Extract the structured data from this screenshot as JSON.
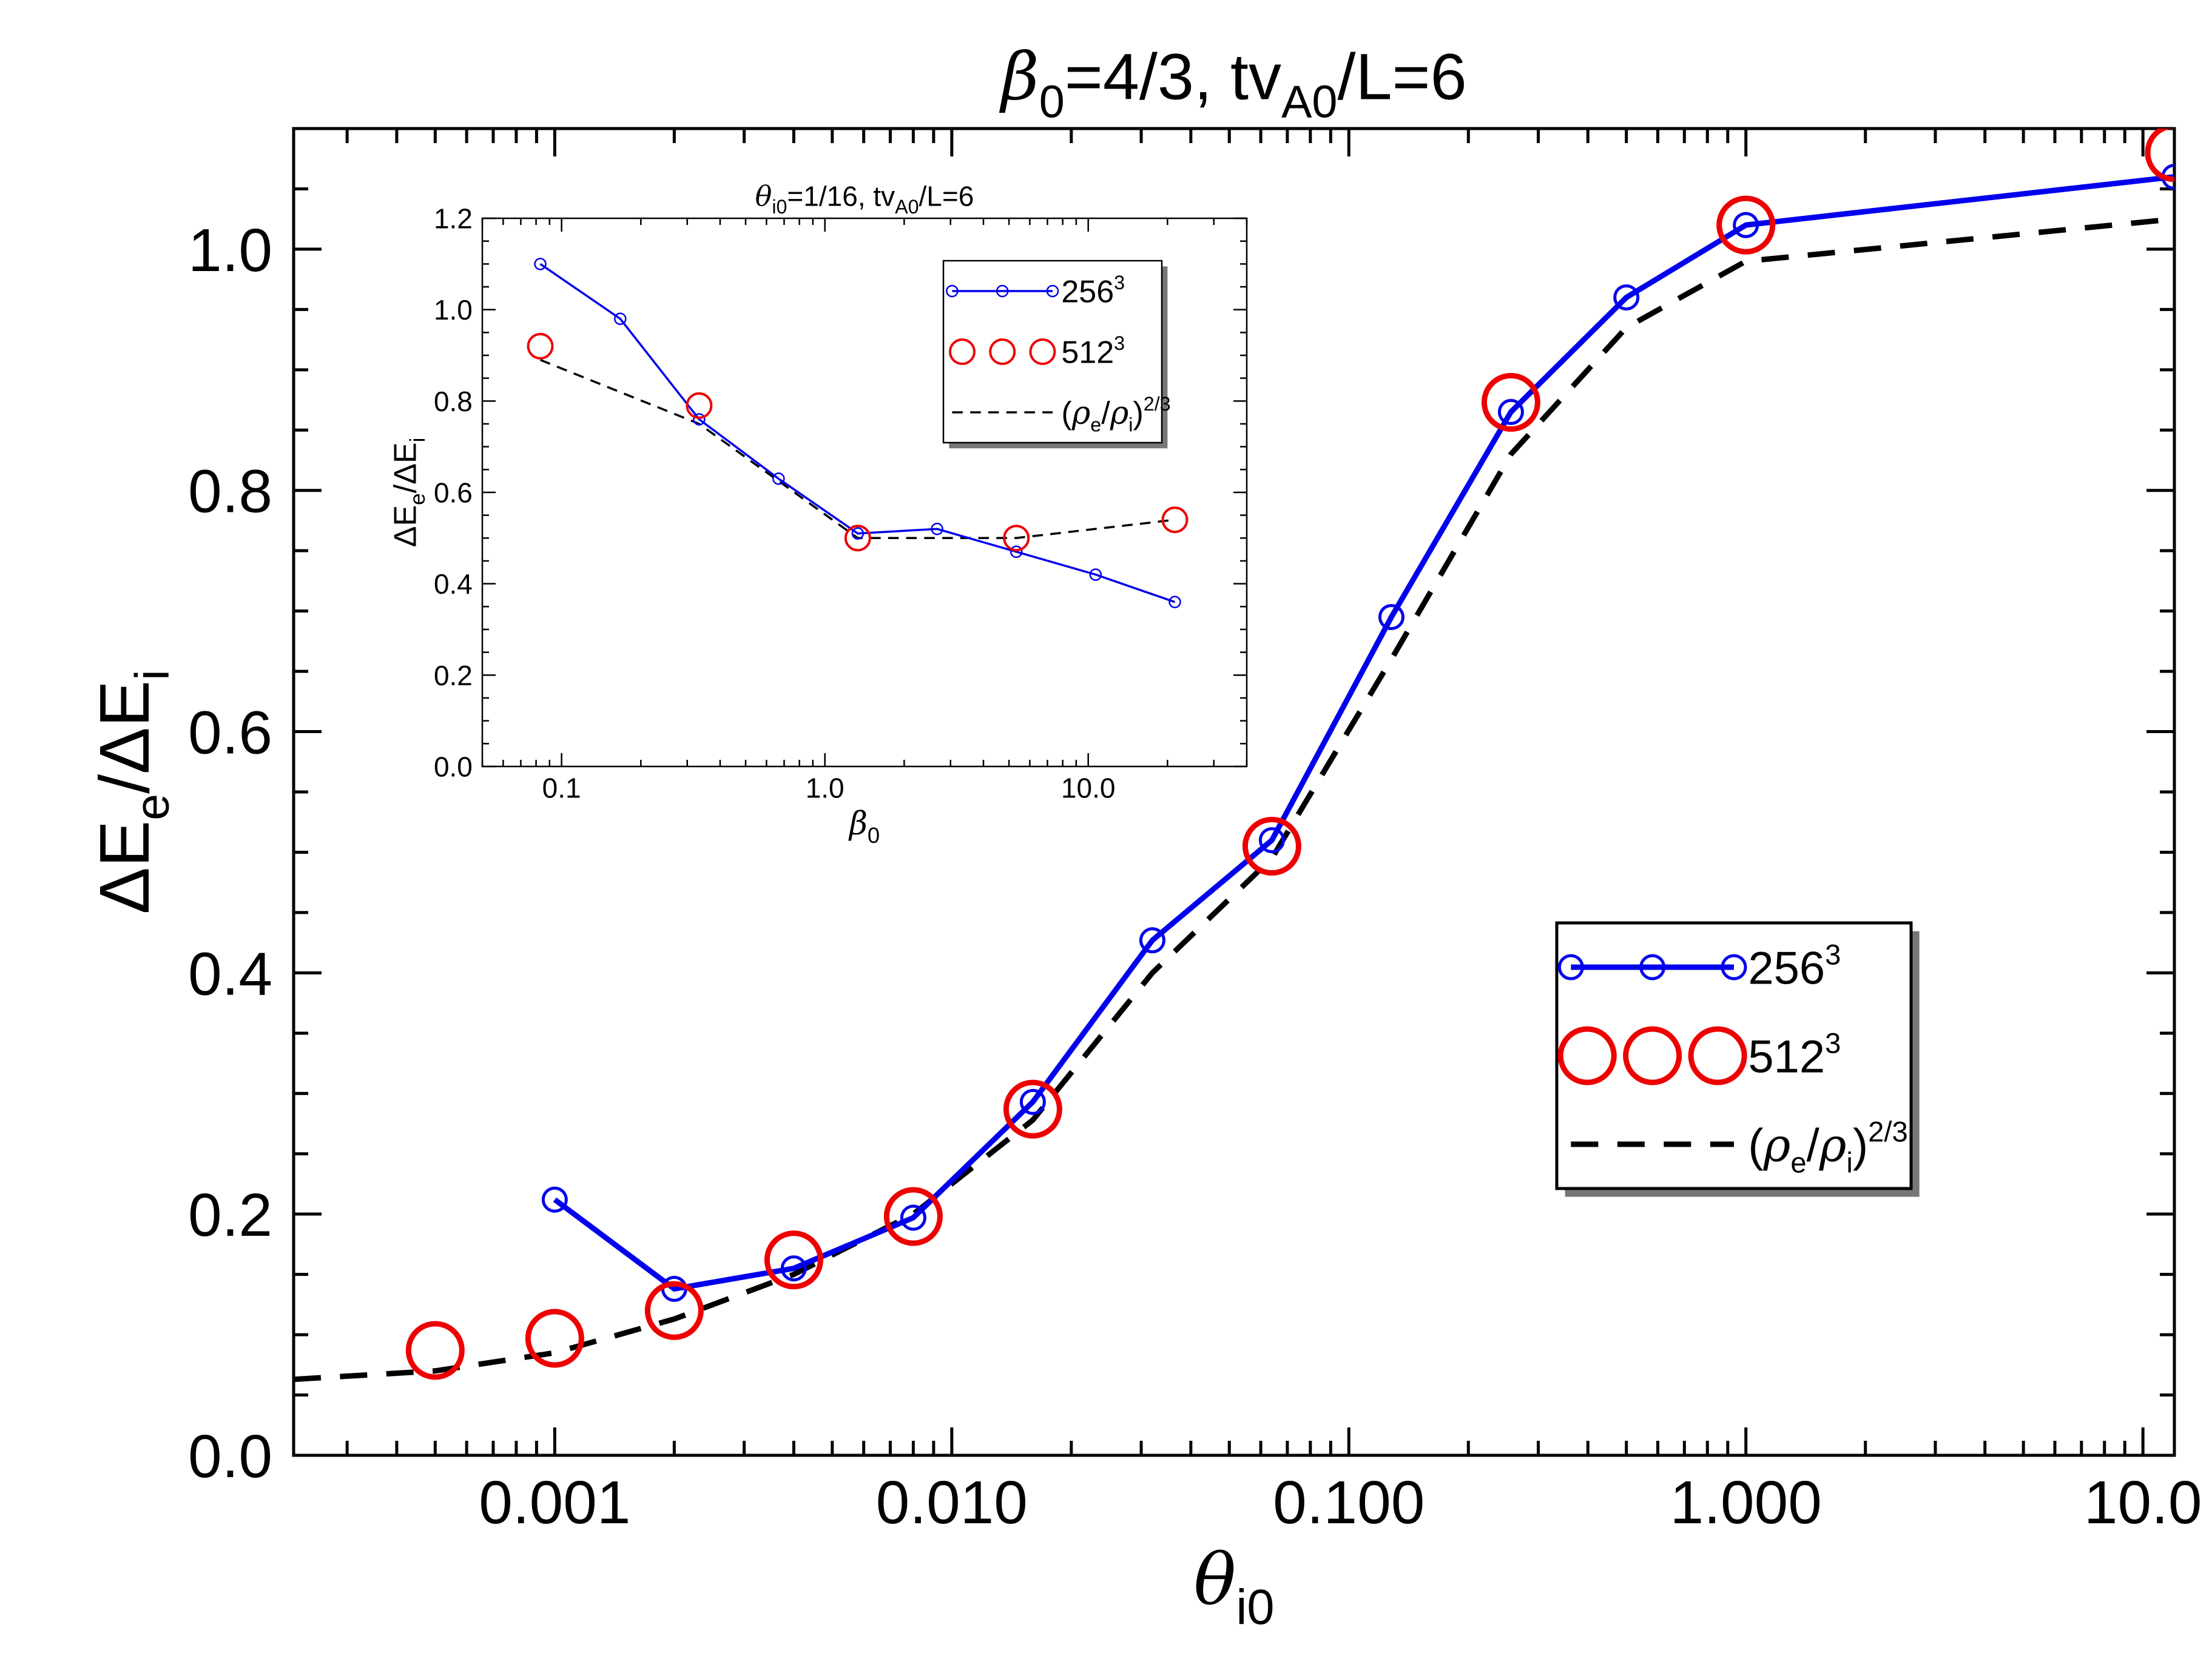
{
  "chart_data": [
    {
      "id": "main",
      "type": "line",
      "title": {
        "beta": "β",
        "beta_sub": "0",
        "rest1": "=4/3, tv",
        "v_sub": "A0",
        "rest2": "/L=6"
      },
      "xlabel": {
        "sym": "θ",
        "sub": "i0"
      },
      "ylabel": {
        "p1": "ΔE",
        "s1": "e",
        "p2": "/ΔE",
        "s2": "i"
      },
      "xscale": "log",
      "xlim": [
        0.00022,
        12.0
      ],
      "ylim": [
        0.0,
        1.1
      ],
      "xticks": [
        {
          "v": 0.001,
          "label": "0.001"
        },
        {
          "v": 0.01,
          "label": "0.010"
        },
        {
          "v": 0.1,
          "label": "0.100"
        },
        {
          "v": 1.0,
          "label": "1.000"
        },
        {
          "v": 10.0,
          "label": "10.0"
        }
      ],
      "yticks": [
        {
          "v": 0.0,
          "label": "0.0"
        },
        {
          "v": 0.2,
          "label": "0.2"
        },
        {
          "v": 0.4,
          "label": "0.4"
        },
        {
          "v": 0.6,
          "label": "0.6"
        },
        {
          "v": 0.8,
          "label": "0.8"
        },
        {
          "v": 1.0,
          "label": "1.0"
        }
      ],
      "yminor_step": 0.05,
      "series": [
        {
          "name": "256",
          "sup": "3",
          "color": "#0000ee",
          "style": "line-markers",
          "x": [
            0.001,
            0.002,
            0.004,
            0.008,
            0.016,
            0.032,
            0.064,
            0.128,
            0.256,
            0.5,
            1.0,
            12.0
          ],
          "y": [
            0.212,
            0.138,
            0.155,
            0.197,
            0.293,
            0.427,
            0.51,
            0.695,
            0.865,
            0.96,
            1.02,
            1.06
          ]
        },
        {
          "name": "512",
          "sup": "3",
          "color": "#ee0000",
          "style": "markers",
          "x": [
            0.0005,
            0.001,
            0.002,
            0.004,
            0.008,
            0.016,
            0.064,
            0.256,
            1.0,
            12.0
          ],
          "y": [
            0.087,
            0.097,
            0.12,
            0.162,
            0.198,
            0.287,
            0.505,
            0.873,
            1.02,
            1.08
          ]
        },
        {
          "name": "(ρe/ρi)2/3",
          "color": "#000000",
          "style": "dashed",
          "x": [
            0.00022,
            0.0005,
            0.001,
            0.002,
            0.004,
            0.008,
            0.016,
            0.032,
            0.064,
            0.128,
            0.256,
            0.5,
            1.0,
            12.0
          ],
          "y": [
            0.063,
            0.07,
            0.085,
            0.113,
            0.15,
            0.2,
            0.278,
            0.4,
            0.495,
            0.66,
            0.83,
            0.935,
            0.99,
            1.025
          ]
        }
      ],
      "legend": {
        "position": "right-middle",
        "entries": [
          {
            "series": 0,
            "base": "256",
            "sup": "3"
          },
          {
            "series": 1,
            "base": "512",
            "sup": "3"
          },
          {
            "series": 2,
            "rho1": "ρ",
            "sub1": "e",
            "slash": "/",
            "rho2": "ρ",
            "sub2": "i",
            "sup": "2/3"
          }
        ]
      }
    },
    {
      "id": "inset",
      "type": "line",
      "title": {
        "sym": "θ",
        "sub": "i0",
        "rest1": "=1/16, tv",
        "v_sub": "A0",
        "rest2": "/L=6"
      },
      "xlabel": {
        "sym": "β",
        "sub": "0"
      },
      "ylabel": {
        "p1": "ΔE",
        "s1": "e",
        "p2": "/ΔE",
        "s2": "i"
      },
      "xscale": "log",
      "xlim": [
        0.05,
        40.0
      ],
      "ylim": [
        0.0,
        1.2
      ],
      "xticks": [
        {
          "v": 0.1,
          "label": "0.1"
        },
        {
          "v": 1.0,
          "label": "1.0"
        },
        {
          "v": 10.0,
          "label": "10.0"
        }
      ],
      "yticks": [
        {
          "v": 0.0,
          "label": "0.0"
        },
        {
          "v": 0.2,
          "label": "0.2"
        },
        {
          "v": 0.4,
          "label": "0.4"
        },
        {
          "v": 0.6,
          "label": "0.6"
        },
        {
          "v": 0.8,
          "label": "0.8"
        },
        {
          "v": 1.0,
          "label": "1.0"
        },
        {
          "v": 1.2,
          "label": "1.2"
        }
      ],
      "yminor_step": 0.05,
      "series": [
        {
          "name": "256",
          "sup": "3",
          "color": "#0000ee",
          "style": "line-markers",
          "x": [
            0.083,
            0.167,
            0.333,
            0.667,
            1.333,
            2.667,
            5.333,
            10.667,
            21.333
          ],
          "y": [
            1.1,
            0.98,
            0.76,
            0.63,
            0.51,
            0.52,
            0.47,
            0.42,
            0.36
          ]
        },
        {
          "name": "512",
          "sup": "3",
          "color": "#ee0000",
          "style": "markers",
          "x": [
            0.083,
            0.333,
            1.333,
            5.333,
            21.333
          ],
          "y": [
            0.92,
            0.79,
            0.5,
            0.5,
            0.54
          ]
        },
        {
          "name": "(ρe/ρi)2/3",
          "color": "#000000",
          "style": "dashed",
          "x": [
            0.083,
            0.333,
            1.333,
            2.667,
            5.333,
            21.333
          ],
          "y": [
            0.89,
            0.75,
            0.5,
            0.5,
            0.5,
            0.54
          ]
        }
      ],
      "legend": {
        "position": "top-right",
        "entries": [
          {
            "series": 0,
            "base": "256",
            "sup": "3"
          },
          {
            "series": 1,
            "base": "512",
            "sup": "3"
          },
          {
            "series": 2,
            "rho1": "ρ",
            "sub1": "e",
            "slash": "/",
            "rho2": "ρ",
            "sub2": "i",
            "sup": "2/3"
          }
        ]
      }
    }
  ]
}
